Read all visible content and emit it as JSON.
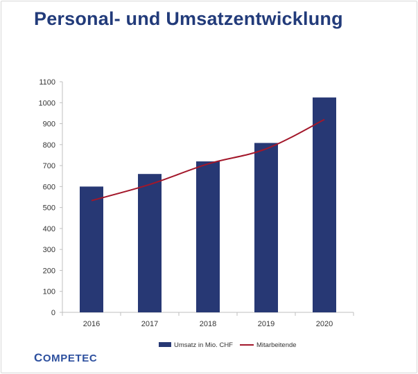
{
  "title": "Personal- und Umsatzentwicklung",
  "logo": "COMPETEC",
  "colors": {
    "title": "#223b7a",
    "bar": "#273874",
    "line": "#a3172a",
    "axis": "#bfbfbf",
    "logo": "#2c4f9e"
  },
  "chart_data": {
    "type": "bar",
    "categories": [
      "2016",
      "2017",
      "2018",
      "2019",
      "2020"
    ],
    "ylim": [
      0,
      1100
    ],
    "ytick_step": 100,
    "grid": false,
    "legend_position": "bottom",
    "series": [
      {
        "name": "Umsatz in Mio. CHF",
        "kind": "bar",
        "values": [
          600,
          660,
          720,
          808,
          1025
        ]
      },
      {
        "name": "Mitarbeitende",
        "kind": "line",
        "values": [
          533,
          610,
          708,
          780,
          920
        ]
      }
    ]
  }
}
